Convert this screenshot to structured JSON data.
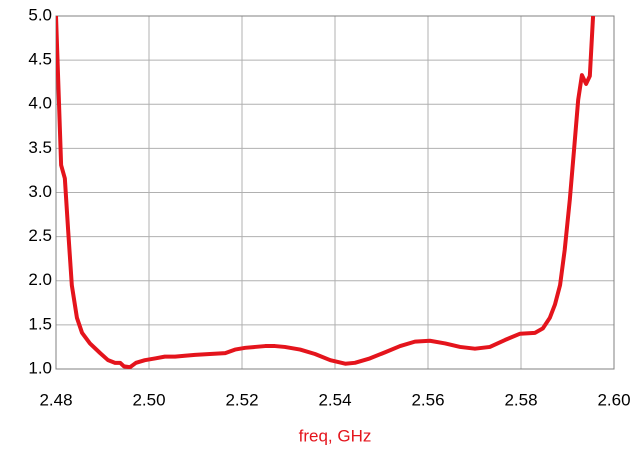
{
  "chart_data": {
    "type": "line",
    "x_label": "freq, GHz",
    "x": [
      2.48,
      2.4811,
      2.4819,
      2.4826,
      2.4834,
      2.4845,
      2.4856,
      2.4873,
      2.4895,
      2.4912,
      2.4927,
      2.4938,
      2.4946,
      2.4959,
      2.4972,
      2.4991,
      2.5013,
      2.5034,
      2.5056,
      2.5077,
      2.5099,
      2.5131,
      2.5164,
      2.5185,
      2.5207,
      2.5228,
      2.525,
      2.5271,
      2.5292,
      2.5325,
      2.5357,
      2.539,
      2.5422,
      2.5443,
      2.5475,
      2.5508,
      2.554,
      2.5572,
      2.5604,
      2.5637,
      2.5669,
      2.5701,
      2.5733,
      2.5766,
      2.5798,
      2.583,
      2.5847,
      2.5862,
      2.5873,
      2.5884,
      2.5894,
      2.5905,
      2.5914,
      2.5923,
      2.5931,
      2.594,
      2.5948,
      2.5955
    ],
    "series": [
      {
        "color": "#e4141c",
        "values": [
          5.0,
          3.31,
          3.16,
          2.58,
          1.95,
          1.58,
          1.41,
          1.29,
          1.18,
          1.1,
          1.07,
          1.07,
          1.03,
          1.02,
          1.07,
          1.1,
          1.12,
          1.14,
          1.14,
          1.15,
          1.16,
          1.17,
          1.18,
          1.22,
          1.24,
          1.25,
          1.26,
          1.26,
          1.25,
          1.22,
          1.17,
          1.1,
          1.06,
          1.07,
          1.12,
          1.19,
          1.26,
          1.31,
          1.32,
          1.29,
          1.25,
          1.23,
          1.25,
          1.33,
          1.4,
          1.41,
          1.46,
          1.58,
          1.73,
          1.95,
          2.35,
          2.92,
          3.48,
          4.05,
          4.33,
          4.23,
          4.32,
          5.0
        ]
      }
    ],
    "xlim": [
      2.48,
      2.6
    ],
    "xticks": [
      2.48,
      {
        "value": 2.5,
        "label": "2.50"
      },
      2.52,
      2.54,
      2.56,
      2.58,
      {
        "value": 2.6,
        "label": "2.60"
      }
    ],
    "ylim": [
      1,
      5
    ],
    "yticks": [
      {
        "value": 1,
        "label": "1.0"
      },
      1.5,
      {
        "value": 2,
        "label": "2.0"
      },
      2.5,
      {
        "value": 3,
        "label": "3.0"
      },
      3.5,
      {
        "value": 4,
        "label": "4.0"
      },
      4.5,
      {
        "value": 5,
        "label": "5.0"
      }
    ],
    "grid": true
  }
}
